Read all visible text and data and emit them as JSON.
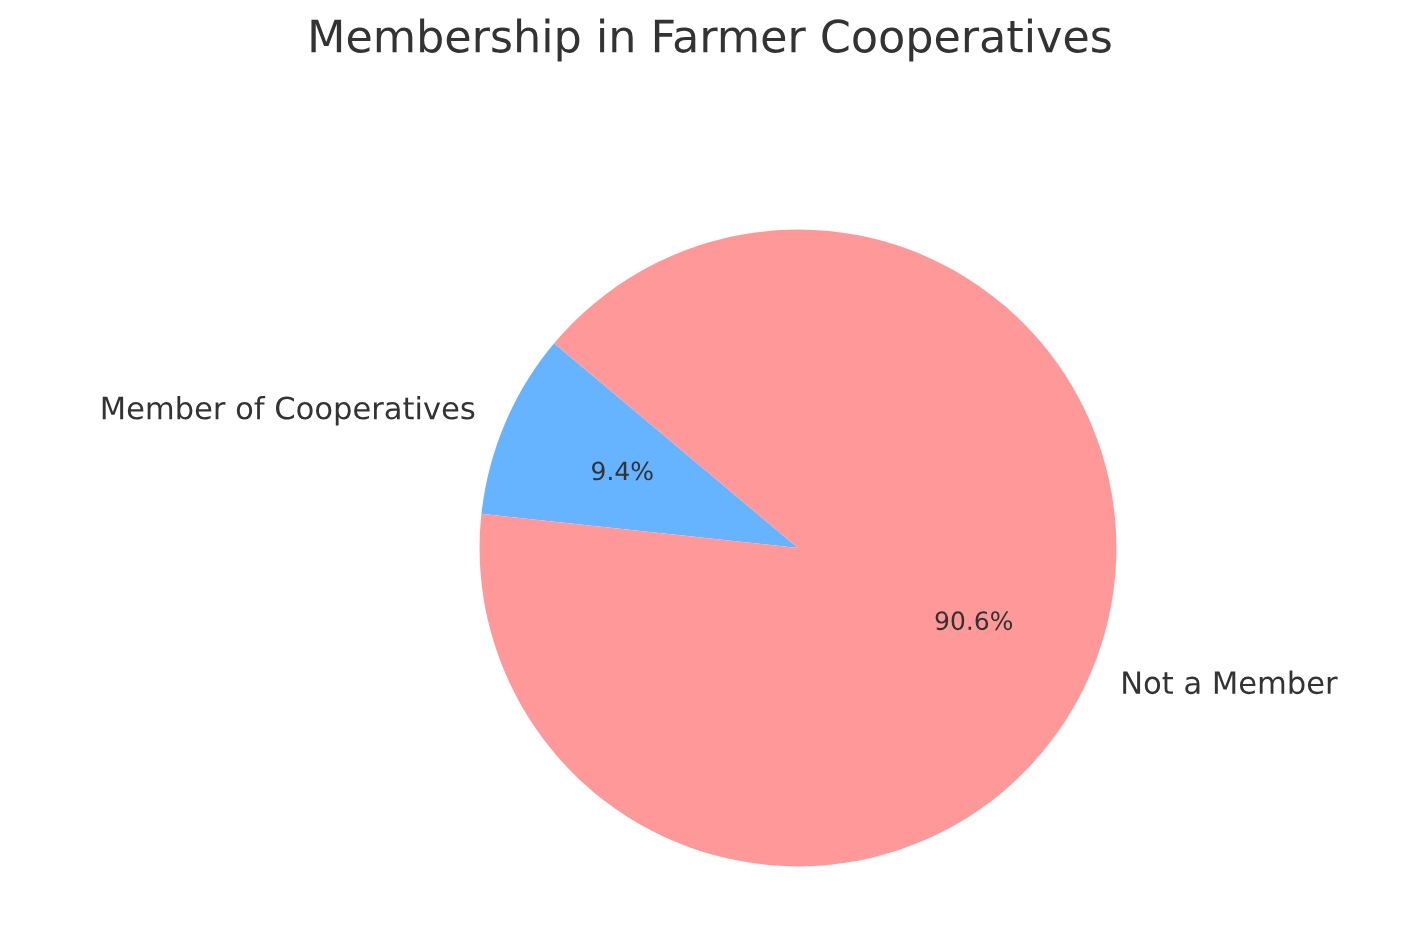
{
  "chart_data": {
    "type": "pie",
    "title": "Membership in Farmer Cooperatives",
    "categories": [
      "Member of Cooperatives",
      "Not a Member"
    ],
    "values": [
      9.4,
      90.6
    ],
    "colors": [
      "#66b3ff",
      "#ff9999"
    ],
    "value_labels": [
      "9.4%",
      "90.6%"
    ]
  }
}
